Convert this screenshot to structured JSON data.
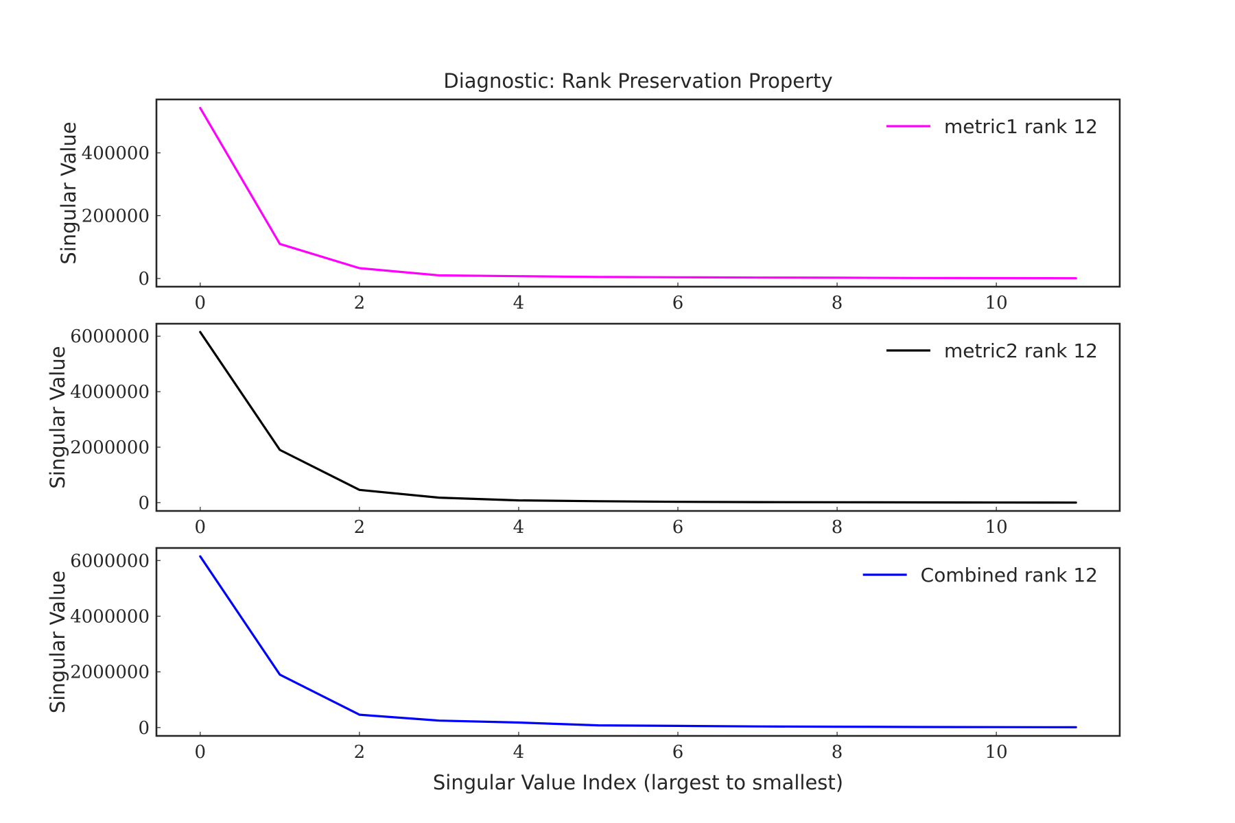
{
  "chart_data": [
    {
      "type": "line",
      "title": "Diagnostic: Rank Preservation Property",
      "xlabel": "Singular Value Index (largest to smallest)",
      "ylabel": "Singular Value",
      "xlim": [
        -0.55,
        11.55
      ],
      "ylim": [
        -26000,
        570000
      ],
      "xticks": [
        0,
        2,
        4,
        6,
        8,
        10
      ],
      "yticks": [
        0,
        200000,
        400000
      ],
      "grid": false,
      "legend_position": "top-right",
      "series": [
        {
          "name": "metric1 rank 12",
          "color": "#ff00ff",
          "x": [
            0,
            1,
            2,
            3,
            4,
            5,
            6,
            7,
            8,
            9,
            10,
            11
          ],
          "values": [
            543000,
            110000,
            33000,
            10000,
            7500,
            5000,
            4000,
            3000,
            2500,
            1800,
            1200,
            800
          ]
        }
      ]
    },
    {
      "type": "line",
      "title": "",
      "xlabel": "Singular Value Index (largest to smallest)",
      "ylabel": "Singular Value",
      "xlim": [
        -0.55,
        11.55
      ],
      "ylim": [
        -300000,
        6450000
      ],
      "xticks": [
        0,
        2,
        4,
        6,
        8,
        10
      ],
      "yticks": [
        0,
        2000000,
        4000000,
        6000000
      ],
      "grid": false,
      "legend_position": "top-right",
      "series": [
        {
          "name": "metric2 rank 12",
          "color": "#000000",
          "x": [
            0,
            1,
            2,
            3,
            4,
            5,
            6,
            7,
            8,
            9,
            10,
            11
          ],
          "values": [
            6150000,
            1900000,
            460000,
            180000,
            80000,
            50000,
            30000,
            20000,
            15000,
            10000,
            5000,
            2000
          ]
        }
      ]
    },
    {
      "type": "line",
      "title": "",
      "xlabel": "Singular Value Index (largest to smallest)",
      "ylabel": "Singular Value",
      "xlim": [
        -0.55,
        11.55
      ],
      "ylim": [
        -300000,
        6450000
      ],
      "xticks": [
        0,
        2,
        4,
        6,
        8,
        10
      ],
      "yticks": [
        0,
        2000000,
        4000000,
        6000000
      ],
      "grid": false,
      "legend_position": "top-right",
      "series": [
        {
          "name": "Combined rank 12",
          "color": "#0000ff",
          "x": [
            0,
            1,
            2,
            3,
            4,
            5,
            6,
            7,
            8,
            9,
            10,
            11
          ],
          "values": [
            6150000,
            1900000,
            460000,
            250000,
            180000,
            80000,
            60000,
            40000,
            30000,
            20000,
            15000,
            10000
          ]
        }
      ]
    }
  ]
}
